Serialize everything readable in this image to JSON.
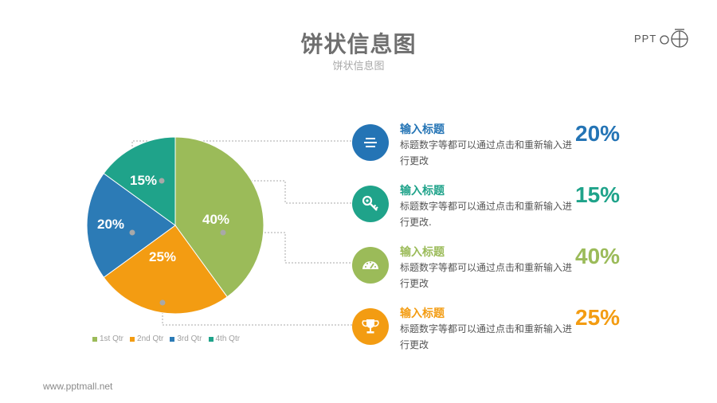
{
  "header": {
    "title": "饼状信息图",
    "subtitle": "饼状信息图",
    "logo_text": "PPT"
  },
  "footer": {
    "url": "www.pptmall.net"
  },
  "colors": {
    "green": "#9bbb59",
    "orange": "#f39c12",
    "blue": "#2c7bb6",
    "teal": "#1fa38a",
    "item_blue": "#2474b5"
  },
  "chart_data": {
    "type": "pie",
    "title": "",
    "slices": [
      {
        "label": "1st Qtr",
        "value": 40,
        "display": "40%",
        "color": "#9bbb59"
      },
      {
        "label": "2nd Qtr",
        "value": 25,
        "display": "25%",
        "color": "#f39c12"
      },
      {
        "label": "3rd Qtr",
        "value": 20,
        "display": "20%",
        "color": "#2c7bb6"
      },
      {
        "label": "4th Qtr",
        "value": 15,
        "display": "15%",
        "color": "#1fa38a"
      }
    ],
    "legend_position": "bottom"
  },
  "items": [
    {
      "title": "输入标题",
      "desc": "标题数字等都可以通过点击和重新输入进行更改",
      "percent": "20%",
      "color": "#2474b5",
      "icon": "layers-icon"
    },
    {
      "title": "输入标题",
      "desc": "标题数字等都可以通过点击和重新输入进行更改.",
      "percent": "15%",
      "color": "#1fa38a",
      "icon": "key-icon"
    },
    {
      "title": "输入标题",
      "desc": "标题数字等都可以通过点击和重新输入进行更改",
      "percent": "40%",
      "color": "#9bbb59",
      "icon": "gauge-icon"
    },
    {
      "title": "输入标题",
      "desc": "标题数字等都可以通过点击和重新输入进行更改",
      "percent": "25%",
      "color": "#f39c12",
      "icon": "trophy-icon"
    }
  ]
}
